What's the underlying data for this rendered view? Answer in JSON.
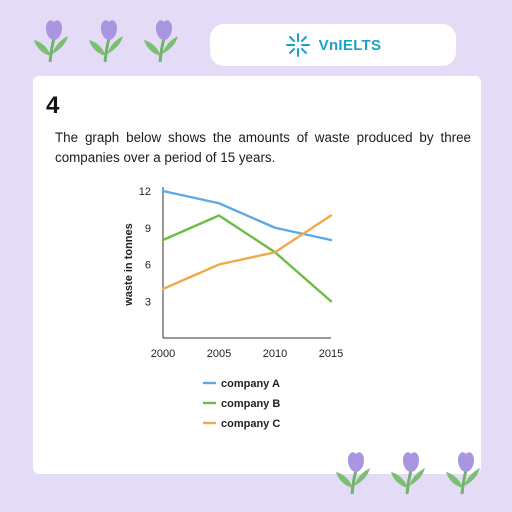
{
  "brand": {
    "name": "VnIELTS",
    "logo_icon": "sparkle-icon",
    "color": "#1aa3c6"
  },
  "decorations": {
    "top": "tulip-icons",
    "bottom": "tulip-icons"
  },
  "task": {
    "number": "4",
    "prompt": "The graph below shows the amounts of waste produced by three companies over a period of 15 years."
  },
  "chart_data": {
    "type": "line",
    "x": [
      2000,
      2005,
      2010,
      2015
    ],
    "xticks": [
      "2000",
      "2005",
      "2010",
      "2015"
    ],
    "yticks": [
      "3",
      "6",
      "9",
      "12"
    ],
    "ylim": [
      0,
      12
    ],
    "xlim": [
      2000,
      2015
    ],
    "title": "",
    "xlabel": "",
    "ylabel": "waste in tonnes",
    "grid": false,
    "legend_position": "bottom",
    "series": [
      {
        "name": "company A",
        "color": "#5aa9e6",
        "values": [
          12,
          11,
          9,
          8
        ]
      },
      {
        "name": "company B",
        "color": "#6cbd45",
        "values": [
          8,
          10,
          7,
          3
        ]
      },
      {
        "name": "company C",
        "color": "#f0a94b",
        "values": [
          4,
          6,
          7,
          10
        ]
      }
    ]
  }
}
